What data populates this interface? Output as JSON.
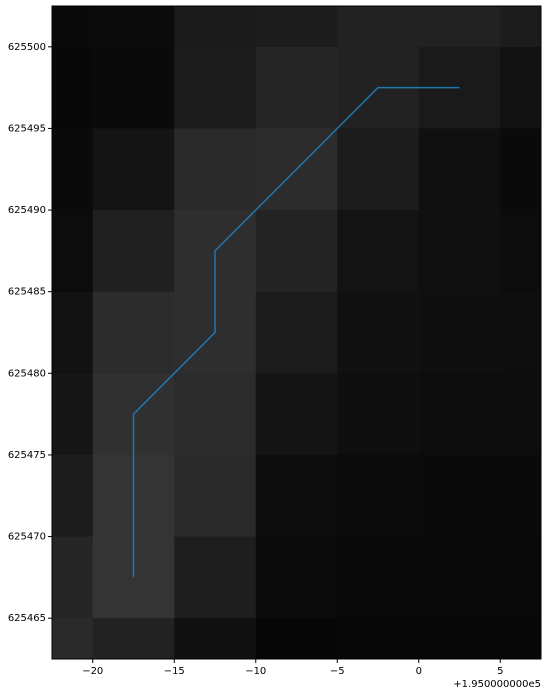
{
  "chart_data": {
    "type": "heatmap",
    "x_edges": [
      -22.5,
      -20,
      -15,
      -10,
      -5,
      0,
      5,
      7.5
    ],
    "y_edges": [
      625502.5,
      625500,
      625495,
      625490,
      625485,
      625480,
      625475,
      625470,
      625465,
      625462.5
    ],
    "cell_colors": [
      [
        "#0a0a0a",
        "#0b0b0b",
        "#1a1a1a",
        "#1c1c1c",
        "#222222",
        "#222222",
        "#1c1c1c"
      ],
      [
        "#080808",
        "#0a0a0a",
        "#1c1c1c",
        "#262626",
        "#222222",
        "#1a1a1a",
        "#121212"
      ],
      [
        "#0a0a0a",
        "#141414",
        "#2a2a2a",
        "#2c2c2c",
        "#1c1c1c",
        "#101010",
        "#0a0a0a"
      ],
      [
        "#0c0c0c",
        "#202020",
        "#2e2e2e",
        "#242424",
        "#131313",
        "#101010",
        "#0c0c0c"
      ],
      [
        "#121212",
        "#2c2c2c",
        "#2e2e2e",
        "#1c1c1c",
        "#111111",
        "#0f0f0f",
        "#0e0e0e"
      ],
      [
        "#161616",
        "#303030",
        "#2c2c2c",
        "#141414",
        "#0f0f0f",
        "#0d0d0d",
        "#0d0d0d"
      ],
      [
        "#1c1c1c",
        "#343434",
        "#2a2a2a",
        "#0d0d0d",
        "#0b0b0b",
        "#0a0a0a",
        "#0a0a0a"
      ],
      [
        "#262626",
        "#343434",
        "#1e1e1e",
        "#0b0b0b",
        "#090909",
        "#090909",
        "#090909"
      ],
      [
        "#2a2a2a",
        "#222222",
        "#101010",
        "#060606",
        "#080808",
        "#080808",
        "#080808"
      ]
    ],
    "line": {
      "color": "#1f77b4",
      "x": [
        -17.5,
        -17.5,
        -12.5,
        -12.5,
        -2.5,
        2.5
      ],
      "y": [
        625467.5,
        625477.5,
        625482.5,
        625487.5,
        625497.5,
        625497.5
      ]
    },
    "xlim": [
      -22.5,
      7.5
    ],
    "ylim": [
      625462.5,
      625502.5
    ],
    "xticks": [
      {
        "value": -20,
        "label": "−20"
      },
      {
        "value": -15,
        "label": "−15"
      },
      {
        "value": -10,
        "label": "−10"
      },
      {
        "value": -5,
        "label": "−5"
      },
      0,
      5
    ],
    "yticks": [
      625465,
      625470,
      625475,
      625480,
      625485,
      625490,
      625495,
      625500
    ],
    "x_offset_label": "+1.950000000e5"
  }
}
